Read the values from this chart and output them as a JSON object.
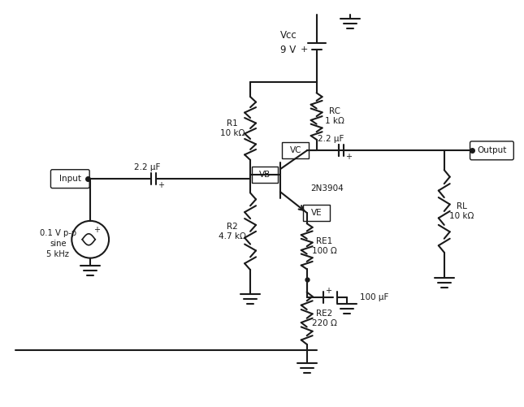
{
  "bg_color": "#ffffff",
  "line_color": "#1a1a1a",
  "box_color": "#ffffff",
  "box_edge": "#1a1a1a",
  "text_color": "#1a1a1a",
  "fig_width": 6.45,
  "fig_height": 5.01,
  "labels": {
    "vcc": "Vcc",
    "vcc_v": "9 V",
    "r1": "R1\n10 kΩ",
    "rc": "RC\n1 kΩ",
    "r2": "R2\n4.7 kΩ",
    "re1": "RE1\n100 Ω",
    "re2": "RE2\n220 Ω",
    "c1": "2.2 μF",
    "c2": "2.2 μF",
    "c3": "100 μF",
    "rl": "RL\n10 kΩ",
    "transistor": "2N3904",
    "input_src": "0.1 V p-p\nsine\n5 kHz",
    "vb_label": "VB",
    "vc_label": "VC",
    "ve_label": "VE",
    "input_label": "Input",
    "output_label": "Output"
  }
}
